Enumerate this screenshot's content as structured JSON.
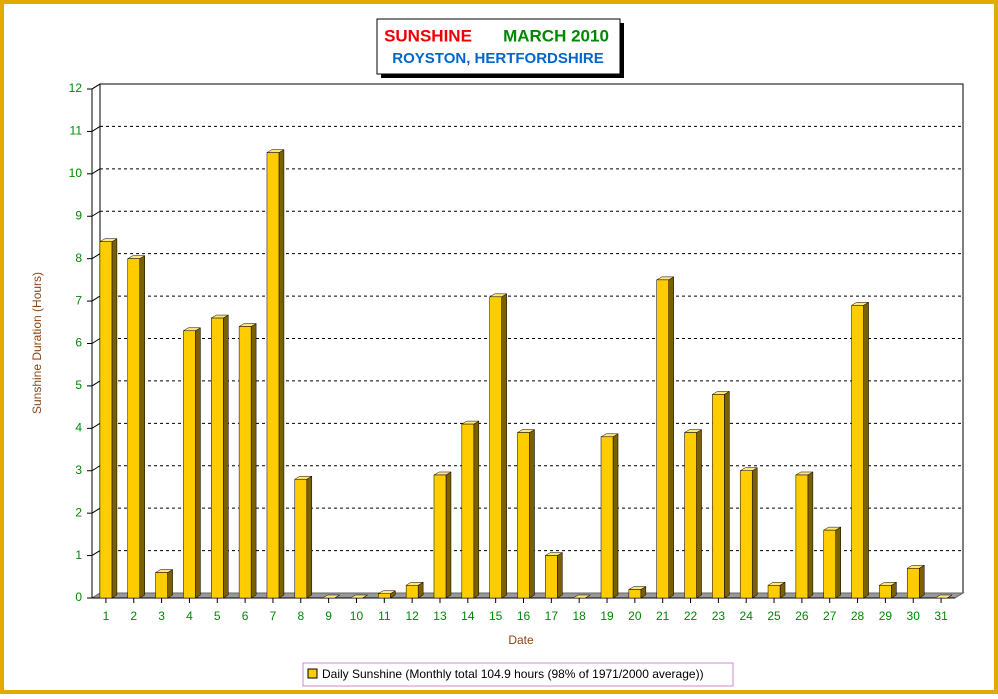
{
  "chart_data": {
    "type": "bar3d",
    "title": "SUNSHINE",
    "period": "MARCH 2010",
    "subtitle": "ROYSTON, HERTFORDSHIRE",
    "x_label": "Date",
    "y_label": "Sunshine Duration (Hours)",
    "categories": [
      "1",
      "2",
      "3",
      "4",
      "5",
      "6",
      "7",
      "8",
      "9",
      "10",
      "11",
      "12",
      "13",
      "14",
      "15",
      "16",
      "17",
      "18",
      "19",
      "20",
      "21",
      "22",
      "23",
      "24",
      "25",
      "26",
      "27",
      "28",
      "29",
      "30",
      "31"
    ],
    "series": [
      {
        "name": "Daily Sunshine (Monthly total 104.9 hours (98% of 1971/2000 average))",
        "color": "#ffcc00",
        "values": [
          8.4,
          8.0,
          0.6,
          6.3,
          6.6,
          6.4,
          10.5,
          2.8,
          0,
          0,
          0.1,
          0.3,
          2.9,
          4.1,
          7.1,
          3.9,
          1.0,
          0,
          3.8,
          0.2,
          7.5,
          3.9,
          4.8,
          3.0,
          0.3,
          2.9,
          1.6,
          6.9,
          0.3,
          0.7,
          0
        ]
      }
    ],
    "ylim": [
      0,
      12
    ],
    "yticks": [
      0,
      1,
      2,
      3,
      4,
      5,
      6,
      7,
      8,
      9,
      10,
      11,
      12
    ],
    "grid": true
  }
}
